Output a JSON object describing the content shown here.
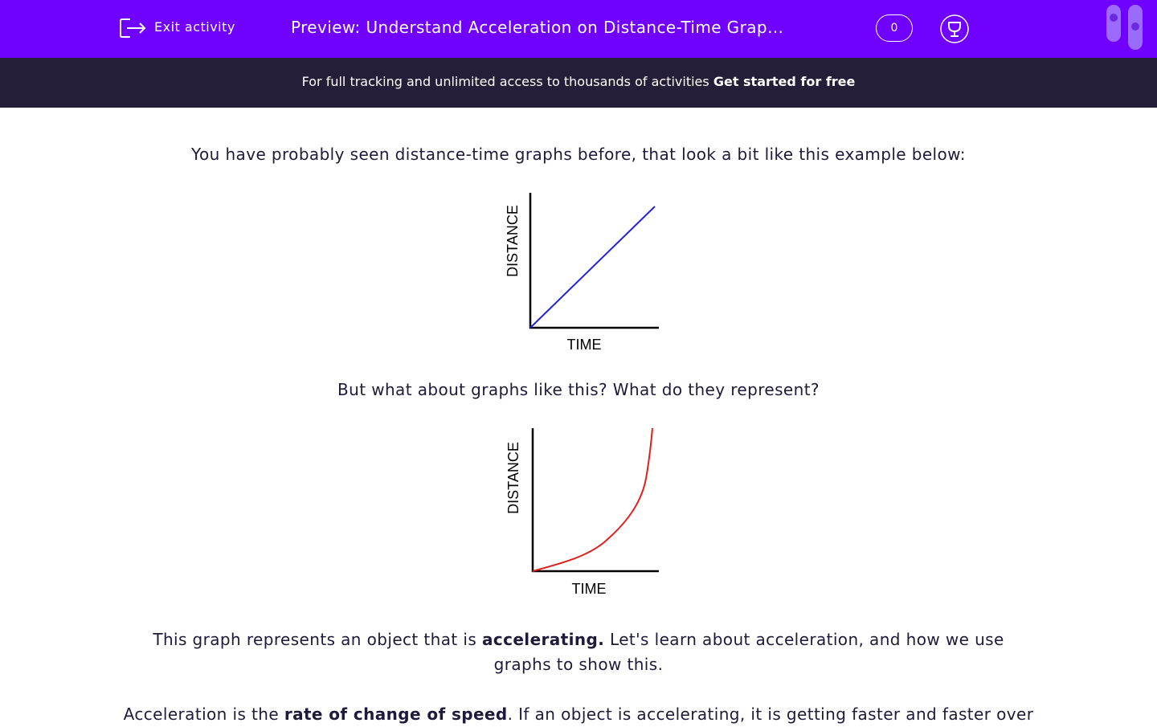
{
  "header": {
    "exit": "Exit activity",
    "title": "Preview: Understand Acceleration on Distance-Time Grap…",
    "score": "0"
  },
  "banner": {
    "text": "For full tracking and unlimited access to thousands of activities",
    "link": "Get started for free"
  },
  "content": {
    "intro": "You have probably seen distance-time graphs before, that look a bit like this example below:",
    "graph1": {
      "y_label": "DISTANCE",
      "x_label": "TIME"
    },
    "question": "But what about graphs like this? What do they represent?",
    "graph2": {
      "y_label": "DISTANCE",
      "x_label": "TIME"
    },
    "para1": [
      "This graph represents an object that is ",
      "accelerating.",
      " Let's learn about acceleration, and how we use graphs to show this."
    ],
    "para2": [
      "Acceleration is the ",
      "rate of change of speed",
      ". If an object is accelerating, it is getting faster and faster over"
    ]
  }
}
